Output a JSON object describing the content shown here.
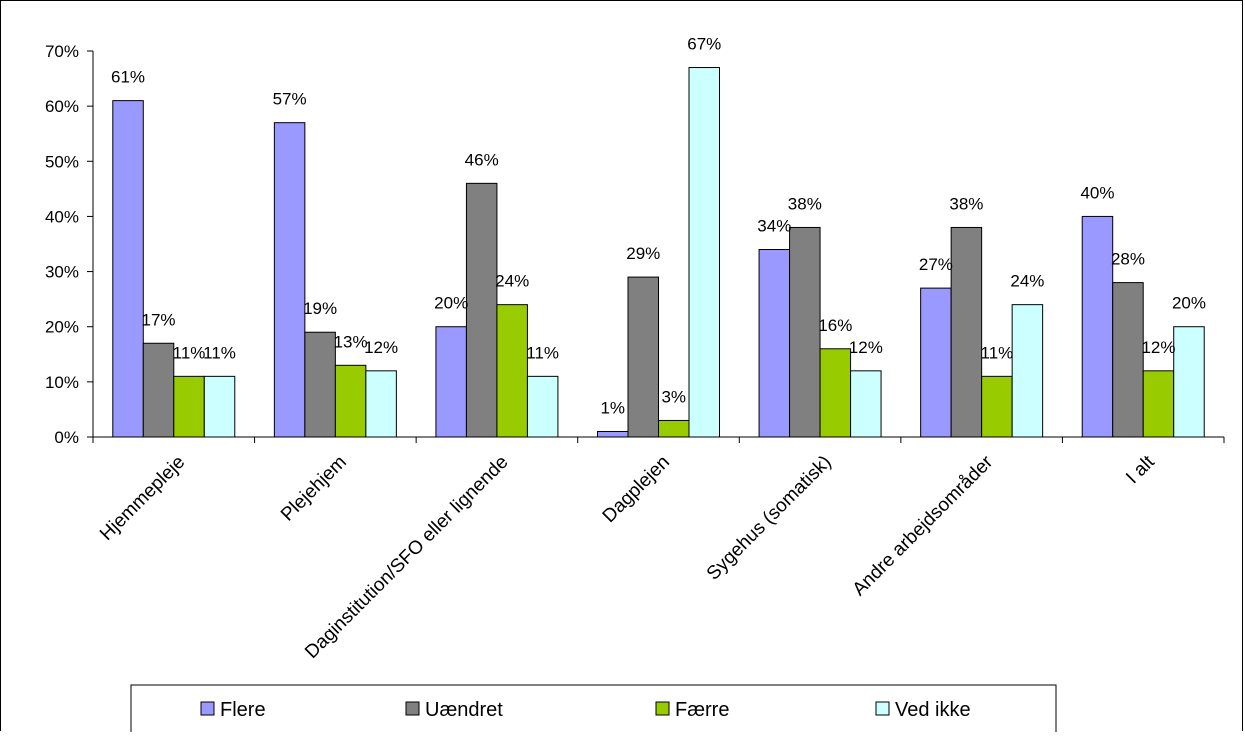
{
  "chart_data": {
    "type": "bar",
    "title": "",
    "xlabel": "",
    "ylabel": "",
    "ylim": [
      0,
      0.7
    ],
    "yticks": [
      "0%",
      "10%",
      "20%",
      "30%",
      "40%",
      "50%",
      "60%",
      "70%"
    ],
    "grid": false,
    "legend_position": "bottom",
    "categories": [
      "Hjemmepleje",
      "Plejehjem",
      "Daginstitution/SFO eller lignende",
      "Dagplejen",
      "Sygehus (somatisk)",
      "Andre arbejdsområder",
      "I alt"
    ],
    "series": [
      {
        "name": "Flere",
        "color": "#9999FF",
        "values": [
          0.61,
          0.57,
          0.2,
          0.01,
          0.34,
          0.27,
          0.4
        ],
        "labels": [
          "61%",
          "57%",
          "20%",
          "1%",
          "34%",
          "27%",
          "40%"
        ]
      },
      {
        "name": "Uændret",
        "color": "#808080",
        "values": [
          0.17,
          0.19,
          0.46,
          0.29,
          0.38,
          0.38,
          0.28
        ],
        "labels": [
          "17%",
          "19%",
          "46%",
          "29%",
          "38%",
          "38%",
          "28%"
        ]
      },
      {
        "name": "Færre",
        "color": "#99CC00",
        "values": [
          0.11,
          0.13,
          0.24,
          0.03,
          0.16,
          0.11,
          0.12
        ],
        "labels": [
          "11%",
          "13%",
          "24%",
          "3%",
          "16%",
          "11%",
          "12%"
        ]
      },
      {
        "name": "Ved ikke",
        "color": "#CCFFFF",
        "values": [
          0.11,
          0.12,
          0.11,
          0.67,
          0.12,
          0.24,
          0.2
        ],
        "labels": [
          "11%",
          "12%",
          "11%",
          "67%",
          "12%",
          "24%",
          "20%"
        ]
      }
    ]
  }
}
